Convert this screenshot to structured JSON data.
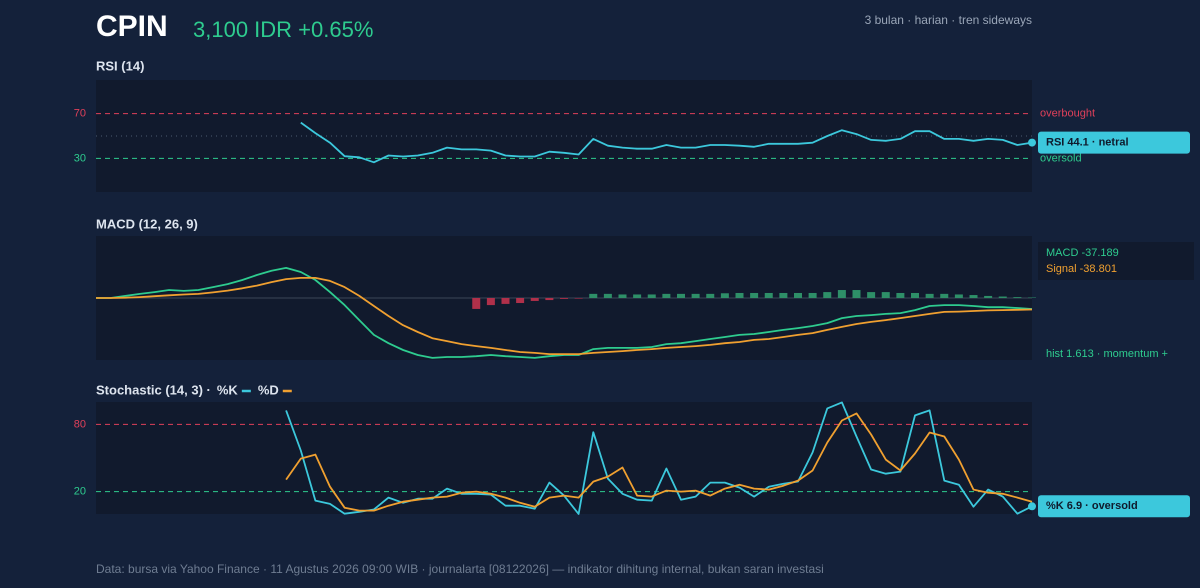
{
  "header": {
    "ticker": "CPIN",
    "quote": "3,100 IDR +0.65%",
    "note": "3 bulan · harian · tren sideways"
  },
  "footer": "Data: bursa via Yahoo Finance · 11 Agustus 2026 09:00 WIB · journalarta [08122026] — indikator dihitung internal, bukan saran investasi",
  "chart_data": [
    {
      "type": "line",
      "title": "RSI (14)",
      "ylim": [
        0,
        100
      ],
      "yticks": [
        30,
        70
      ],
      "reference_lines": [
        {
          "value": 70,
          "label": "overbought",
          "color": "#e0405a",
          "style": "dashed"
        },
        {
          "value": 30,
          "label": "oversold",
          "color": "#2ecc8f",
          "style": "dashed"
        },
        {
          "value": 50,
          "color": "#4a5a70",
          "style": "dotted"
        }
      ],
      "series": [
        {
          "color": "#3cc8dc",
          "badge": "RSI 44.1 · netral",
          "values": [
            null,
            null,
            null,
            null,
            null,
            null,
            null,
            null,
            null,
            null,
            null,
            null,
            null,
            null,
            62,
            52.6,
            44,
            32,
            31,
            26.5,
            32.6,
            31.7,
            32.6,
            35,
            39.6,
            38,
            38,
            37,
            32.6,
            31.7,
            31.7,
            36,
            35,
            33.5,
            47.4,
            41.3,
            39.6,
            38.7,
            38.7,
            42,
            39.6,
            39.6,
            42,
            42,
            41.3,
            40.4,
            43,
            43,
            43,
            44,
            50,
            55.2,
            51.7,
            46.5,
            45.7,
            47.4,
            54.3,
            54.3,
            47.4,
            47.4,
            45.7,
            47.4,
            46.5,
            42,
            44.1
          ]
        }
      ]
    },
    {
      "type": "line",
      "title": "MACD (12, 26, 9)",
      "ylim": [
        -210,
        210
      ],
      "reference_lines": [
        {
          "value": 0,
          "color": "#3a4658",
          "style": "solid"
        }
      ],
      "series": [
        {
          "kind": "bar",
          "color_up": "#2e8f68",
          "color_down": "#b0304a",
          "color": "#2ecc8f",
          "label": "hist 1.613 · momentum +",
          "values": [
            null,
            null,
            null,
            null,
            null,
            null,
            null,
            null,
            null,
            null,
            null,
            null,
            null,
            null,
            null,
            null,
            null,
            null,
            null,
            null,
            null,
            null,
            null,
            null,
            null,
            null,
            -37,
            -24,
            -20,
            -17,
            -10,
            -7,
            -3,
            -2,
            14,
            14,
            12,
            12,
            12,
            14,
            14,
            14,
            14,
            16,
            17,
            17,
            17,
            17,
            17,
            17,
            20,
            27,
            27,
            20,
            20,
            17,
            17,
            14,
            14,
            12,
            10,
            7,
            5,
            3,
            1.613
          ]
        },
        {
          "color": "#2ecc8f",
          "label": "MACD -37.189",
          "values": [
            0,
            0,
            7,
            14,
            20,
            27,
            24,
            27,
            37,
            47,
            61,
            78,
            92,
            102,
            88,
            61,
            20,
            -24,
            -75,
            -125,
            -153,
            -176,
            -193,
            -203,
            -200,
            -200,
            -197,
            -193,
            -197,
            -200,
            -203,
            -197,
            -193,
            -193,
            -173,
            -169,
            -169,
            -169,
            -166,
            -156,
            -153,
            -146,
            -139,
            -132,
            -125,
            -122,
            -115,
            -108,
            -102,
            -95,
            -85,
            -68,
            -61,
            -58,
            -54,
            -51,
            -41,
            -27,
            -24,
            -24,
            -27,
            -31,
            -31,
            -34,
            -37.189
          ]
        },
        {
          "color": "#f0a030",
          "label": "Signal -38.801",
          "values": [
            0,
            0,
            1,
            3,
            6,
            9,
            12,
            14,
            19,
            25,
            33,
            42,
            54,
            64,
            68,
            68,
            58,
            37,
            7,
            -27,
            -61,
            -92,
            -115,
            -136,
            -146,
            -156,
            -163,
            -169,
            -176,
            -183,
            -186,
            -190,
            -190,
            -190,
            -186,
            -183,
            -180,
            -176,
            -173,
            -169,
            -166,
            -163,
            -159,
            -153,
            -149,
            -142,
            -139,
            -132,
            -125,
            -119,
            -108,
            -98,
            -88,
            -81,
            -75,
            -68,
            -61,
            -54,
            -47,
            -46,
            -44,
            -42,
            -41,
            -40,
            -38.801
          ]
        }
      ]
    },
    {
      "type": "line",
      "title": "Stochastic (14, 3) ·",
      "ylim": [
        0,
        100
      ],
      "yticks": [
        20,
        80
      ],
      "reference_lines": [
        {
          "value": 80,
          "color": "#e0405a",
          "style": "dashed"
        },
        {
          "value": 20,
          "color": "#2ecc8f",
          "style": "dashed"
        }
      ],
      "series": [
        {
          "name": "%K",
          "color": "#3cc8dc",
          "values": [
            null,
            null,
            null,
            null,
            null,
            null,
            null,
            null,
            null,
            null,
            null,
            null,
            null,
            92.5,
            56.7,
            12,
            9,
            0.3,
            2,
            4,
            14.6,
            10,
            13.7,
            13.7,
            22.7,
            18,
            18,
            17.3,
            7.4,
            7.4,
            4.7,
            28,
            16.4,
            0,
            73,
            31.6,
            18,
            12.8,
            12,
            40.6,
            12.8,
            15.5,
            28,
            28,
            23.6,
            15.5,
            24.4,
            27,
            29,
            55,
            94.3,
            99.6,
            69.2,
            39.7,
            36,
            37.9,
            88,
            92.5,
            29.8,
            26.2,
            6.5,
            21.8,
            15.5,
            0.3,
            6.9
          ]
        },
        {
          "name": "%D",
          "color": "#f0a030",
          "values": [
            null,
            null,
            null,
            null,
            null,
            null,
            null,
            null,
            null,
            null,
            null,
            null,
            null,
            30.7,
            49.5,
            53,
            24.4,
            5.6,
            3,
            3,
            7.4,
            11,
            12.8,
            14.6,
            15.5,
            19,
            20,
            18,
            14.6,
            10,
            6.5,
            14.6,
            16.4,
            14.6,
            28.9,
            33.4,
            41.5,
            16.4,
            15.5,
            20.9,
            20,
            20.9,
            16.4,
            22.7,
            26.2,
            22.7,
            21.8,
            25.3,
            29.8,
            38.8,
            63.8,
            83.5,
            89.8,
            71,
            48.6,
            38.8,
            54,
            72.8,
            69.2,
            48.6,
            21.8,
            19,
            18,
            14.6,
            11
          ]
        }
      ],
      "badge_series": 0,
      "badge": "%K 6.9 · oversold"
    }
  ]
}
